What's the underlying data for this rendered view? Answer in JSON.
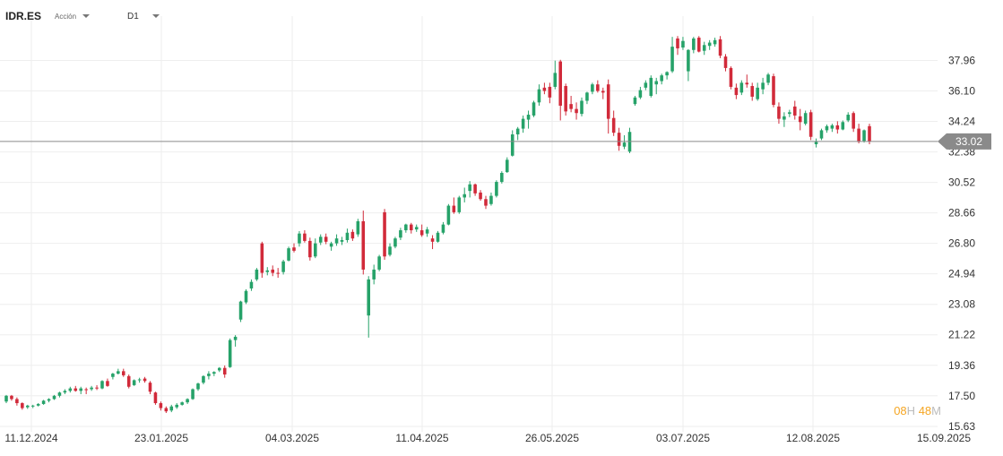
{
  "header": {
    "symbol": "IDR.ES",
    "asset_type": "Acción",
    "timeframe": "D1"
  },
  "countdown": {
    "hours": "08",
    "hours_unit": "H",
    "minutes": "48",
    "minutes_unit": "M"
  },
  "current_price": {
    "label": "33.02",
    "value": 33.02,
    "color": "#8a8a8a"
  },
  "colors": {
    "up": "#26a269",
    "down": "#d12a3a",
    "grid": "#eeeeee",
    "axis_text": "#333333"
  },
  "chart_data": {
    "type": "candlestick",
    "ylim": [
      15.63,
      39.9
    ],
    "y_ticks": [
      "15.63",
      "17.50",
      "19.36",
      "21.22",
      "23.08",
      "24.94",
      "26.80",
      "28.66",
      "30.52",
      "32.38",
      "34.24",
      "36.10",
      "37.96"
    ],
    "x_tick_labels": [
      "11.12.2024",
      "23.01.2025",
      "04.03.2025",
      "11.04.2025",
      "26.05.2025",
      "03.07.2025",
      "12.08.2025",
      "15.09.2025"
    ],
    "grid": true,
    "ohlc": [
      [
        17.15,
        17.55,
        17.05,
        17.5
      ],
      [
        17.5,
        17.55,
        17.2,
        17.3
      ],
      [
        17.3,
        17.4,
        16.9,
        17.05
      ],
      [
        17.05,
        17.1,
        16.65,
        16.75
      ],
      [
        16.8,
        16.95,
        16.7,
        16.9
      ],
      [
        16.85,
        16.95,
        16.75,
        16.9
      ],
      [
        16.9,
        17.05,
        16.85,
        17.0
      ],
      [
        17.0,
        17.25,
        16.95,
        17.2
      ],
      [
        17.2,
        17.35,
        17.1,
        17.3
      ],
      [
        17.3,
        17.55,
        17.25,
        17.5
      ],
      [
        17.5,
        17.75,
        17.4,
        17.7
      ],
      [
        17.7,
        17.9,
        17.6,
        17.8
      ],
      [
        17.8,
        18.05,
        17.7,
        17.95
      ],
      [
        17.95,
        18.1,
        17.75,
        17.8
      ],
      [
        17.8,
        18.05,
        17.6,
        17.95
      ],
      [
        17.9,
        18.0,
        17.6,
        17.85
      ],
      [
        17.9,
        18.1,
        17.8,
        18.0
      ],
      [
        18.0,
        18.15,
        17.85,
        17.95
      ],
      [
        17.95,
        18.45,
        17.9,
        18.4
      ],
      [
        18.4,
        18.55,
        18.05,
        18.1
      ],
      [
        18.65,
        18.9,
        18.5,
        18.85
      ],
      [
        18.85,
        19.15,
        18.8,
        19.0
      ],
      [
        19.0,
        19.15,
        18.65,
        18.75
      ],
      [
        18.7,
        18.8,
        17.95,
        18.05
      ],
      [
        18.15,
        18.5,
        18.1,
        18.45
      ],
      [
        18.45,
        18.6,
        18.3,
        18.5
      ],
      [
        18.55,
        18.65,
        18.3,
        18.4
      ],
      [
        18.3,
        18.4,
        17.6,
        17.75
      ],
      [
        17.7,
        17.75,
        16.95,
        17.05
      ],
      [
        17.05,
        17.15,
        16.6,
        16.75
      ],
      [
        16.75,
        16.85,
        16.45,
        16.55
      ],
      [
        16.6,
        16.95,
        16.5,
        16.85
      ],
      [
        16.8,
        17.05,
        16.7,
        16.95
      ],
      [
        16.95,
        17.15,
        16.9,
        17.1
      ],
      [
        17.1,
        17.35,
        17.0,
        17.3
      ],
      [
        17.3,
        17.95,
        17.25,
        17.9
      ],
      [
        17.9,
        18.3,
        17.8,
        18.25
      ],
      [
        18.3,
        18.75,
        18.2,
        18.7
      ],
      [
        18.7,
        19.0,
        18.5,
        18.85
      ],
      [
        18.85,
        19.0,
        18.7,
        18.95
      ],
      [
        19.05,
        19.25,
        18.95,
        19.2
      ],
      [
        19.2,
        19.35,
        18.6,
        18.8
      ],
      [
        19.25,
        21.0,
        19.2,
        20.9
      ],
      [
        20.9,
        21.2,
        20.5,
        21.1
      ],
      [
        22.15,
        23.3,
        22.0,
        23.25
      ],
      [
        23.2,
        24.0,
        23.1,
        23.9
      ],
      [
        24.05,
        24.6,
        23.9,
        24.45
      ],
      [
        24.6,
        25.3,
        24.5,
        25.2
      ],
      [
        26.8,
        26.9,
        24.7,
        25.0
      ],
      [
        25.05,
        25.35,
        24.85,
        25.15
      ],
      [
        25.2,
        25.45,
        24.8,
        25.0
      ],
      [
        25.0,
        25.3,
        24.7,
        24.95
      ],
      [
        25.05,
        25.8,
        24.9,
        25.7
      ],
      [
        25.75,
        26.6,
        25.7,
        26.5
      ],
      [
        26.55,
        26.8,
        26.25,
        26.35
      ],
      [
        26.8,
        27.55,
        26.6,
        27.4
      ],
      [
        27.4,
        27.6,
        26.85,
        26.95
      ],
      [
        26.95,
        27.15,
        25.75,
        25.95
      ],
      [
        26.0,
        27.1,
        25.9,
        26.8
      ],
      [
        26.85,
        27.35,
        26.7,
        27.2
      ],
      [
        27.2,
        27.4,
        26.75,
        26.9
      ],
      [
        26.6,
        26.9,
        26.35,
        26.8
      ],
      [
        26.8,
        27.35,
        26.65,
        27.1
      ],
      [
        26.9,
        27.2,
        26.7,
        27.0
      ],
      [
        27.0,
        27.7,
        26.85,
        27.45
      ],
      [
        27.5,
        27.65,
        26.95,
        27.1
      ],
      [
        27.35,
        28.3,
        27.2,
        28.15
      ],
      [
        28.15,
        28.8,
        24.9,
        25.2
      ],
      [
        22.4,
        24.8,
        21.05,
        24.6
      ],
      [
        24.6,
        25.5,
        24.3,
        25.2
      ],
      [
        25.2,
        26.1,
        25.1,
        26.0
      ],
      [
        28.7,
        28.9,
        25.8,
        26.0
      ],
      [
        26.1,
        26.8,
        26.0,
        26.6
      ],
      [
        26.6,
        27.2,
        26.5,
        27.1
      ],
      [
        27.15,
        27.75,
        27.0,
        27.6
      ],
      [
        27.6,
        28.0,
        27.45,
        27.95
      ],
      [
        27.95,
        28.05,
        27.4,
        27.6
      ],
      [
        27.65,
        27.95,
        27.5,
        27.8
      ],
      [
        27.6,
        27.95,
        27.2,
        27.3
      ],
      [
        27.4,
        27.8,
        27.2,
        27.65
      ],
      [
        27.1,
        27.3,
        26.45,
        26.9
      ],
      [
        26.9,
        27.55,
        26.85,
        27.45
      ],
      [
        27.45,
        28.1,
        27.35,
        27.95
      ],
      [
        27.95,
        29.2,
        27.9,
        29.1
      ],
      [
        29.1,
        29.6,
        28.6,
        28.7
      ],
      [
        28.7,
        29.7,
        28.6,
        29.6
      ],
      [
        29.6,
        30.2,
        29.3,
        29.8
      ],
      [
        30.0,
        30.6,
        29.6,
        30.4
      ],
      [
        30.4,
        30.45,
        29.7,
        29.85
      ],
      [
        29.9,
        30.05,
        29.4,
        29.5
      ],
      [
        29.5,
        29.7,
        28.9,
        29.1
      ],
      [
        29.2,
        29.9,
        29.1,
        29.7
      ],
      [
        29.7,
        30.65,
        29.6,
        30.55
      ],
      [
        30.55,
        31.2,
        30.45,
        31.1
      ],
      [
        31.15,
        32.05,
        31.1,
        31.9
      ],
      [
        32.15,
        33.7,
        32.1,
        33.45
      ],
      [
        33.45,
        33.9,
        33.1,
        33.8
      ],
      [
        33.8,
        34.6,
        33.55,
        34.4
      ],
      [
        34.35,
        34.9,
        33.8,
        34.65
      ],
      [
        34.6,
        35.5,
        34.5,
        35.4
      ],
      [
        35.4,
        36.5,
        35.2,
        36.2
      ],
      [
        36.3,
        36.6,
        35.9,
        36.1
      ],
      [
        36.35,
        36.6,
        35.35,
        35.7
      ],
      [
        36.35,
        37.95,
        36.2,
        37.2
      ],
      [
        37.9,
        38.0,
        34.3,
        35.2
      ],
      [
        36.4,
        36.55,
        34.6,
        34.85
      ],
      [
        35.3,
        35.8,
        34.8,
        35.0
      ],
      [
        35.0,
        35.4,
        34.35,
        34.75
      ],
      [
        34.7,
        35.7,
        34.55,
        35.5
      ],
      [
        35.5,
        36.05,
        35.3,
        36.0
      ],
      [
        36.05,
        36.6,
        35.9,
        36.5
      ],
      [
        36.5,
        36.75,
        36.0,
        36.1
      ],
      [
        36.1,
        36.3,
        35.6,
        36.0
      ],
      [
        36.5,
        36.8,
        33.5,
        34.4
      ],
      [
        34.45,
        34.9,
        33.35,
        33.55
      ],
      [
        33.55,
        33.85,
        32.45,
        32.75
      ],
      [
        32.7,
        33.4,
        32.55,
        32.95
      ],
      [
        32.4,
        33.85,
        32.3,
        33.6
      ],
      [
        35.3,
        35.8,
        35.2,
        35.7
      ],
      [
        35.7,
        36.35,
        35.6,
        36.15
      ],
      [
        36.3,
        36.75,
        36.15,
        36.6
      ],
      [
        35.8,
        37.05,
        35.7,
        36.9
      ],
      [
        36.5,
        36.9,
        35.9,
        36.7
      ],
      [
        36.7,
        37.15,
        36.5,
        37.05
      ],
      [
        37.05,
        37.3,
        36.8,
        37.25
      ],
      [
        37.3,
        39.4,
        37.2,
        38.8
      ],
      [
        39.3,
        39.45,
        38.3,
        38.7
      ],
      [
        38.75,
        39.4,
        38.6,
        39.15
      ],
      [
        37.3,
        38.65,
        36.7,
        38.6
      ],
      [
        38.6,
        39.4,
        38.4,
        39.3
      ],
      [
        39.35,
        39.45,
        38.45,
        38.5
      ],
      [
        38.55,
        39.1,
        38.3,
        38.9
      ],
      [
        38.85,
        39.2,
        38.6,
        39.05
      ],
      [
        38.95,
        39.35,
        38.8,
        39.2
      ],
      [
        39.25,
        39.45,
        38.1,
        38.25
      ],
      [
        38.2,
        38.35,
        37.3,
        37.5
      ],
      [
        37.5,
        37.6,
        36.2,
        36.35
      ],
      [
        36.3,
        36.55,
        35.6,
        35.85
      ],
      [
        36.0,
        36.75,
        35.85,
        36.6
      ],
      [
        36.6,
        37.1,
        36.3,
        36.5
      ],
      [
        36.4,
        36.6,
        35.5,
        35.75
      ],
      [
        35.6,
        36.6,
        35.5,
        36.3
      ],
      [
        36.2,
        36.9,
        35.9,
        36.6
      ],
      [
        36.6,
        37.2,
        36.45,
        37.1
      ],
      [
        37.0,
        37.15,
        35.1,
        35.25
      ],
      [
        35.15,
        35.4,
        34.1,
        34.4
      ],
      [
        34.35,
        34.8,
        33.9,
        34.55
      ],
      [
        34.7,
        34.95,
        34.5,
        34.8
      ],
      [
        35.15,
        35.5,
        34.35,
        34.6
      ],
      [
        34.55,
        35.0,
        33.7,
        34.2
      ],
      [
        34.1,
        34.9,
        34.0,
        34.75
      ],
      [
        34.8,
        34.95,
        33.1,
        33.3
      ],
      [
        32.85,
        33.2,
        32.65,
        33.0
      ],
      [
        33.2,
        33.8,
        33.1,
        33.7
      ],
      [
        33.7,
        34.05,
        33.55,
        33.95
      ],
      [
        33.8,
        34.1,
        33.6,
        34.0
      ],
      [
        34.0,
        34.25,
        33.5,
        33.75
      ],
      [
        33.75,
        34.3,
        33.7,
        34.2
      ],
      [
        34.3,
        34.8,
        34.2,
        34.65
      ],
      [
        34.75,
        34.85,
        33.6,
        33.8
      ],
      [
        33.8,
        34.1,
        32.9,
        33.0
      ],
      [
        33.05,
        33.75,
        32.95,
        33.7
      ],
      [
        33.95,
        34.1,
        32.85,
        33.02
      ]
    ]
  }
}
